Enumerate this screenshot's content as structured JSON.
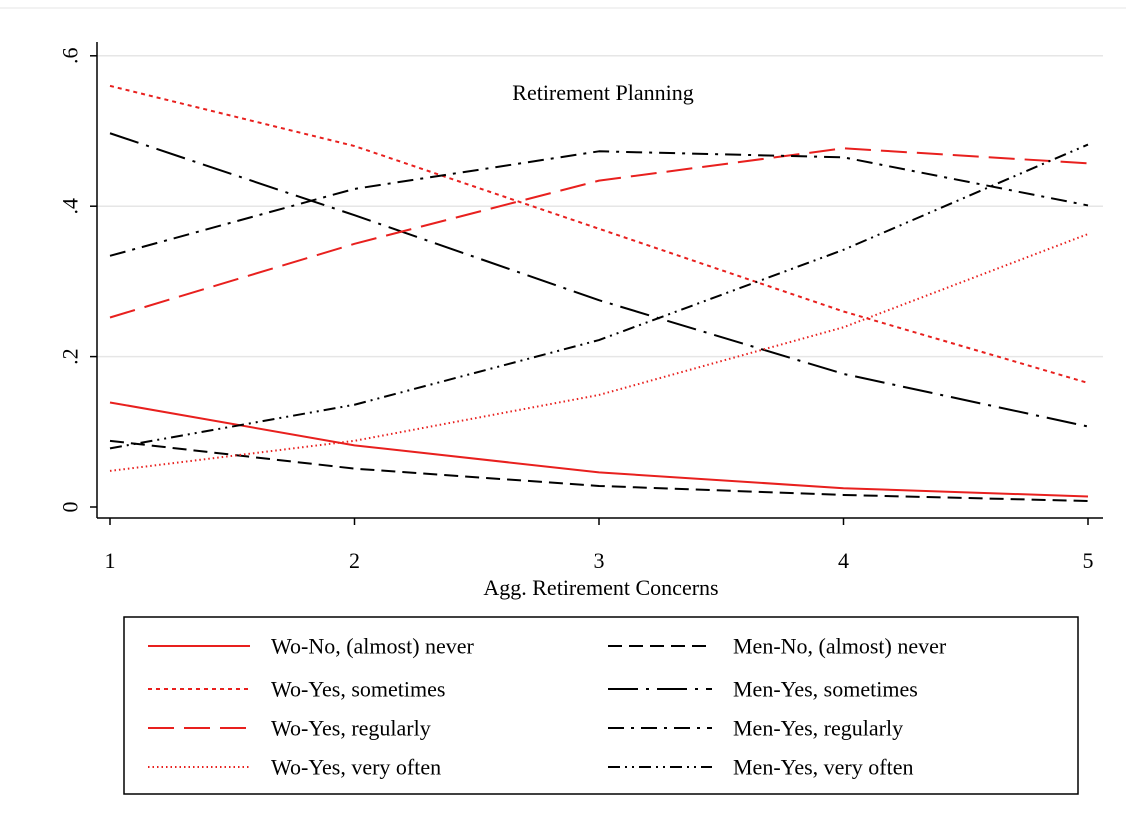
{
  "chart_data": {
    "type": "line",
    "title": "Retirement Planning",
    "xlabel": "Agg. Retirement Concerns",
    "ylabel": "",
    "x": [
      1,
      2,
      3,
      4,
      5
    ],
    "x_ticks": [
      "1",
      "2",
      "3",
      "4",
      "5"
    ],
    "y_ticks": [
      {
        "value": 0,
        "label": "0"
      },
      {
        "value": 0.2,
        "label": ".2"
      },
      {
        "value": 0.4,
        "label": ".4"
      },
      {
        "value": 0.6,
        "label": ".6"
      }
    ],
    "xlim": [
      1,
      5
    ],
    "ylim": [
      0,
      0.6
    ],
    "grid": true,
    "legend_position": "bottom",
    "series": [
      {
        "name": "Wo-No, (almost) never",
        "color": "#e8201e",
        "style": "solid",
        "values": [
          0.139,
          0.082,
          0.046,
          0.025,
          0.014
        ]
      },
      {
        "name": "Men-No, (almost) never",
        "color": "#000000",
        "style": "dash",
        "values": [
          0.088,
          0.051,
          0.028,
          0.016,
          0.008
        ]
      },
      {
        "name": "Wo-Yes, sometimes",
        "color": "#e8201e",
        "style": "short-dash",
        "values": [
          0.56,
          0.48,
          0.37,
          0.26,
          0.165
        ]
      },
      {
        "name": "Men-Yes, sometimes",
        "color": "#000000",
        "style": "long-dash-dot",
        "values": [
          0.497,
          0.388,
          0.275,
          0.177,
          0.107
        ]
      },
      {
        "name": "Wo-Yes, regularly",
        "color": "#e8201e",
        "style": "long-dash",
        "values": [
          0.252,
          0.35,
          0.434,
          0.477,
          0.457
        ]
      },
      {
        "name": "Men-Yes, regularly",
        "color": "#000000",
        "style": "dash-dot",
        "values": [
          0.334,
          0.423,
          0.473,
          0.465,
          0.401
        ]
      },
      {
        "name": "Wo-Yes, very often",
        "color": "#e8201e",
        "style": "dot",
        "values": [
          0.048,
          0.088,
          0.149,
          0.239,
          0.363
        ]
      },
      {
        "name": "Men-Yes, very often",
        "color": "#000000",
        "style": "dash-dot-dot",
        "values": [
          0.078,
          0.136,
          0.222,
          0.342,
          0.482
        ]
      }
    ]
  }
}
